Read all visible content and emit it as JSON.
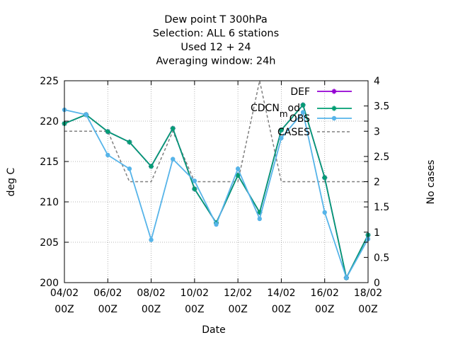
{
  "chart_data": {
    "type": "line",
    "title_lines": [
      "Dew point T 300hPa",
      "Selection: ALL      6 stations",
      "Used  12 + 24",
      "Averaging window: 24h"
    ],
    "xlabel": "Date",
    "ylabel": "deg C",
    "y2label": "No cases",
    "x_ticks": [
      {
        "d": 0,
        "l1": "04/02",
        "l2": "00Z"
      },
      {
        "d": 2,
        "l1": "06/02",
        "l2": "00Z"
      },
      {
        "d": 4,
        "l1": "08/02",
        "l2": "00Z"
      },
      {
        "d": 6,
        "l1": "10/02",
        "l2": "00Z"
      },
      {
        "d": 8,
        "l1": "12/02",
        "l2": "00Z"
      },
      {
        "d": 10,
        "l1": "14/02",
        "l2": "00Z"
      },
      {
        "d": 12,
        "l1": "16/02",
        "l2": "00Z"
      },
      {
        "d": 14,
        "l1": "18/02",
        "l2": "00Z"
      }
    ],
    "xlim": [
      0,
      14
    ],
    "ylim": [
      200,
      225
    ],
    "y_ticks": [
      "200",
      "205",
      "210",
      "215",
      "220",
      "225"
    ],
    "y2lim": [
      0,
      4
    ],
    "y2_ticks": [
      "0",
      "0.5",
      "1",
      "1.5",
      "2",
      "2.5",
      "3",
      "3.5",
      "4"
    ],
    "grid": true,
    "legend_position": "top-right",
    "series": [
      {
        "name": "DEF",
        "color": "#9400d3",
        "marker": "plus",
        "axis": "y",
        "x": [
          0,
          1,
          2,
          3,
          4,
          5,
          6,
          7,
          8,
          9,
          10,
          11,
          12,
          13,
          14
        ],
        "values": [
          219.7,
          220.8,
          218.7,
          217.4,
          214.4,
          219.1,
          211.6,
          207.4,
          213.3,
          208.7,
          218.9,
          222.0,
          213.0,
          200.6,
          205.9
        ]
      },
      {
        "name": "CDCN_m_od",
        "label_main": "CDCN",
        "label_sub": "m",
        "label_tail": "od",
        "color": "#009e73",
        "marker": "plus",
        "axis": "y",
        "x": [
          0,
          1,
          2,
          3,
          4,
          5,
          6,
          7,
          8,
          9,
          10,
          11,
          12,
          13,
          14
        ],
        "values": [
          219.7,
          220.8,
          218.7,
          217.4,
          214.4,
          219.1,
          211.6,
          207.4,
          213.3,
          208.7,
          218.9,
          222.0,
          213.0,
          200.6,
          205.9
        ]
      },
      {
        "name": "OBS",
        "color": "#56b4e9",
        "marker": "diamond",
        "axis": "y",
        "x": [
          0,
          1,
          2,
          3,
          4,
          5,
          6,
          7,
          8,
          9,
          10,
          11,
          12,
          13,
          14
        ],
        "values": [
          221.4,
          220.8,
          215.8,
          214.1,
          205.3,
          215.3,
          212.6,
          207.2,
          214.1,
          207.9,
          217.9,
          221.1,
          208.7,
          200.6,
          205.4
        ]
      },
      {
        "name": "CASES",
        "color": "#808080",
        "dash": "4,3",
        "axis": "y2",
        "x": [
          0,
          1,
          2,
          3,
          4,
          5,
          6,
          7,
          8,
          9,
          10,
          11,
          12,
          13,
          14
        ],
        "values": [
          3,
          3,
          3,
          2,
          2,
          3,
          2,
          2,
          2,
          4,
          2,
          2,
          2,
          2,
          2
        ]
      }
    ]
  }
}
